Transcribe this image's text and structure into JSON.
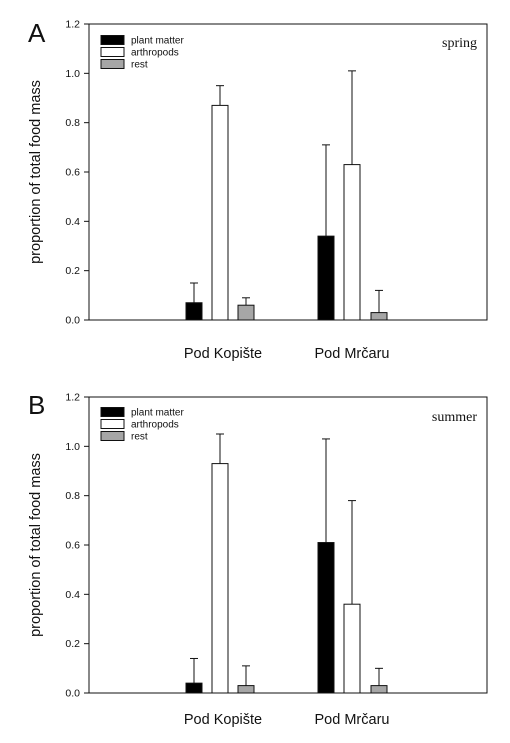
{
  "chart_data": [
    {
      "type": "bar",
      "panel": "A",
      "annotation": "spring",
      "ylabel": "proportion of total food mass",
      "ylim": [
        0,
        1.2
      ],
      "yticks": [
        "0.0",
        "0.2",
        "0.4",
        "0.6",
        "0.8",
        "1.0",
        "1.2"
      ],
      "categories": [
        "Pod Kopište",
        "Pod Mrčaru"
      ],
      "series": [
        {
          "name": "plant matter",
          "color": "#000000",
          "values": [
            0.07,
            0.34
          ],
          "errors": [
            0.08,
            0.37
          ]
        },
        {
          "name": "arthropods",
          "color": "#ffffff",
          "values": [
            0.87,
            0.63
          ],
          "errors": [
            0.08,
            0.38
          ]
        },
        {
          "name": "rest",
          "color": "#a6a6a6",
          "values": [
            0.06,
            0.03
          ],
          "errors": [
            0.03,
            0.09
          ]
        }
      ],
      "legend": "top-left"
    },
    {
      "type": "bar",
      "panel": "B",
      "annotation": "summer",
      "ylabel": "proportion of total food mass",
      "ylim": [
        0,
        1.2
      ],
      "yticks": [
        "0.0",
        "0.2",
        "0.4",
        "0.6",
        "0.8",
        "1.0",
        "1.2"
      ],
      "categories": [
        "Pod Kopište",
        "Pod Mrčaru"
      ],
      "series": [
        {
          "name": "plant matter",
          "color": "#000000",
          "values": [
            0.04,
            0.61
          ],
          "errors": [
            0.1,
            0.42
          ]
        },
        {
          "name": "arthropods",
          "color": "#ffffff",
          "values": [
            0.93,
            0.36
          ],
          "errors": [
            0.12,
            0.42
          ]
        },
        {
          "name": "rest",
          "color": "#a6a6a6",
          "values": [
            0.03,
            0.03
          ],
          "errors": [
            0.08,
            0.07
          ]
        }
      ],
      "legend": "top-left"
    }
  ]
}
